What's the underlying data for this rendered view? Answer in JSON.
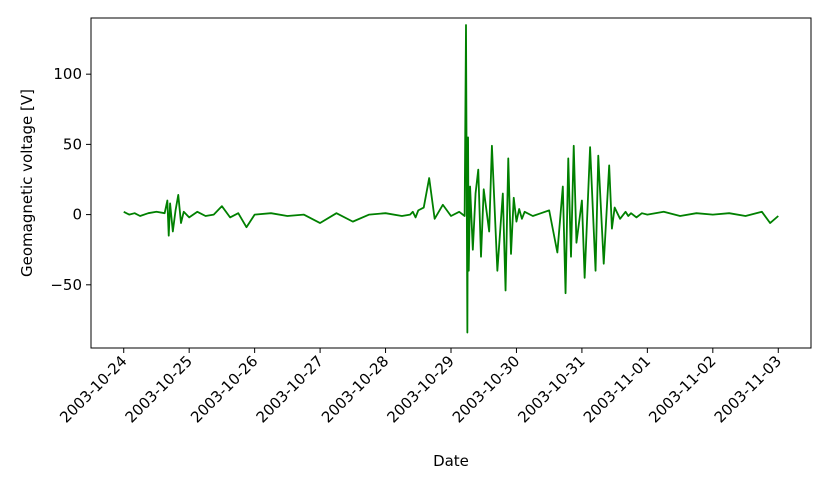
{
  "chart_data": {
    "type": "line",
    "title": "",
    "xlabel": "Date",
    "ylabel": "Geomagnetic voltage [V]",
    "x_type": "date",
    "xlim": [
      "2003-10-23T12:00",
      "2003-11-03T12:00"
    ],
    "ylim": [
      -95,
      140
    ],
    "x_ticks": [
      "2003-10-24",
      "2003-10-25",
      "2003-10-26",
      "2003-10-27",
      "2003-10-28",
      "2003-10-29",
      "2003-10-30",
      "2003-10-31",
      "2003-11-01",
      "2003-11-02",
      "2003-11-03"
    ],
    "y_ticks": [
      -50,
      0,
      50,
      100
    ],
    "y_tick_labels": [
      "−50",
      "0",
      "50",
      "100"
    ],
    "grid": false,
    "legend": "none",
    "series": [
      {
        "color": "#008000",
        "x": [
          "2003-10-24T00:00",
          "2003-10-24T02:00",
          "2003-10-24T04:00",
          "2003-10-24T06:00",
          "2003-10-24T09:00",
          "2003-10-24T12:00",
          "2003-10-24T15:00",
          "2003-10-24T16:00",
          "2003-10-24T16:30",
          "2003-10-24T17:00",
          "2003-10-24T18:00",
          "2003-10-24T19:00",
          "2003-10-24T20:00",
          "2003-10-24T21:00",
          "2003-10-24T22:00",
          "2003-10-25T00:00",
          "2003-10-25T03:00",
          "2003-10-25T06:00",
          "2003-10-25T09:00",
          "2003-10-25T12:00",
          "2003-10-25T15:00",
          "2003-10-25T18:00",
          "2003-10-25T21:00",
          "2003-10-26T00:00",
          "2003-10-26T06:00",
          "2003-10-26T12:00",
          "2003-10-26T18:00",
          "2003-10-27T00:00",
          "2003-10-27T06:00",
          "2003-10-27T12:00",
          "2003-10-27T18:00",
          "2003-10-28T00:00",
          "2003-10-28T06:00",
          "2003-10-28T09:00",
          "2003-10-28T10:00",
          "2003-10-28T11:00",
          "2003-10-28T12:00",
          "2003-10-28T14:00",
          "2003-10-28T16:00",
          "2003-10-28T18:00",
          "2003-10-28T21:00",
          "2003-10-29T00:00",
          "2003-10-29T03:00",
          "2003-10-29T05:00",
          "2003-10-29T05:30",
          "2003-10-29T06:00",
          "2003-10-29T06:15",
          "2003-10-29T06:30",
          "2003-10-29T07:00",
          "2003-10-29T08:00",
          "2003-10-29T09:00",
          "2003-10-29T10:00",
          "2003-10-29T11:00",
          "2003-10-29T12:00",
          "2003-10-29T14:00",
          "2003-10-29T15:00",
          "2003-10-29T17:00",
          "2003-10-29T19:00",
          "2003-10-29T20:00",
          "2003-10-29T21:00",
          "2003-10-29T22:00",
          "2003-10-29T23:00",
          "2003-10-30T00:00",
          "2003-10-30T01:00",
          "2003-10-30T02:00",
          "2003-10-30T03:00",
          "2003-10-30T06:00",
          "2003-10-30T09:00",
          "2003-10-30T12:00",
          "2003-10-30T15:00",
          "2003-10-30T17:00",
          "2003-10-30T18:00",
          "2003-10-30T19:00",
          "2003-10-30T20:00",
          "2003-10-30T21:00",
          "2003-10-30T22:00",
          "2003-10-31T00:00",
          "2003-10-31T01:00",
          "2003-10-31T03:00",
          "2003-10-31T05:00",
          "2003-10-31T06:00",
          "2003-10-31T08:00",
          "2003-10-31T10:00",
          "2003-10-31T11:00",
          "2003-10-31T12:00",
          "2003-10-31T14:00",
          "2003-10-31T16:00",
          "2003-10-31T17:00",
          "2003-10-31T18:00",
          "2003-10-31T20:00",
          "2003-10-31T22:00",
          "2003-11-01T00:00",
          "2003-11-01T06:00",
          "2003-11-01T12:00",
          "2003-11-01T18:00",
          "2003-11-02T00:00",
          "2003-11-02T06:00",
          "2003-11-02T12:00",
          "2003-11-02T18:00",
          "2003-11-02T21:00",
          "2003-11-03T00:00"
        ],
        "values": [
          2,
          0,
          1,
          -1,
          1,
          2,
          1,
          10,
          -15,
          8,
          -12,
          3,
          14,
          -6,
          2,
          -2,
          2,
          -1,
          0,
          6,
          -2,
          1,
          -9,
          0,
          1,
          -1,
          0,
          -6,
          1,
          -5,
          0,
          1,
          -1,
          0,
          2,
          -2,
          3,
          5,
          26,
          -3,
          7,
          -1,
          2,
          -1,
          135,
          -84,
          55,
          -40,
          20,
          -25,
          15,
          32,
          -30,
          18,
          -12,
          49,
          -40,
          15,
          -54,
          40,
          -28,
          12,
          -5,
          4,
          -3,
          2,
          -1,
          1,
          3,
          -27,
          20,
          -56,
          40,
          -30,
          49,
          -20,
          10,
          -45,
          48,
          -40,
          42,
          -35,
          35,
          -10,
          5,
          -3,
          2,
          -1,
          1,
          -2,
          1,
          0,
          2,
          -1,
          1,
          0,
          1,
          -1,
          2,
          -6,
          -1
        ]
      }
    ]
  }
}
